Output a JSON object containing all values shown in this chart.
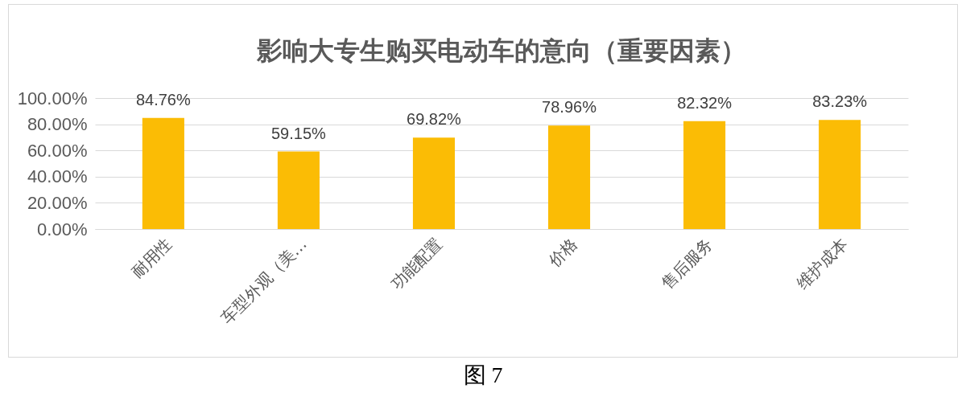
{
  "chart_data": {
    "type": "bar",
    "title": "影响大专生购买电动车的意向（重要因素）",
    "categories": [
      "耐用性",
      "车型外观（美…",
      "功能配置",
      "价格",
      "售后服务",
      "维护成本"
    ],
    "values": [
      84.76,
      59.15,
      69.82,
      78.96,
      82.32,
      83.23
    ],
    "value_labels": [
      "84.76%",
      "59.15%",
      "69.82%",
      "78.96%",
      "82.32%",
      "83.23%"
    ],
    "color": "#fbbc05",
    "ylim": [
      0,
      100
    ],
    "yticks": [
      {
        "value": 0,
        "label": "0.00%"
      },
      {
        "value": 20,
        "label": "20.00%"
      },
      {
        "value": 40,
        "label": "40.00%"
      },
      {
        "value": 60,
        "label": "60.00%"
      },
      {
        "value": 80,
        "label": "80.00%"
      },
      {
        "value": 100,
        "label": "100.00%"
      }
    ],
    "grid": "y",
    "annotations": [
      "图 7"
    ]
  }
}
